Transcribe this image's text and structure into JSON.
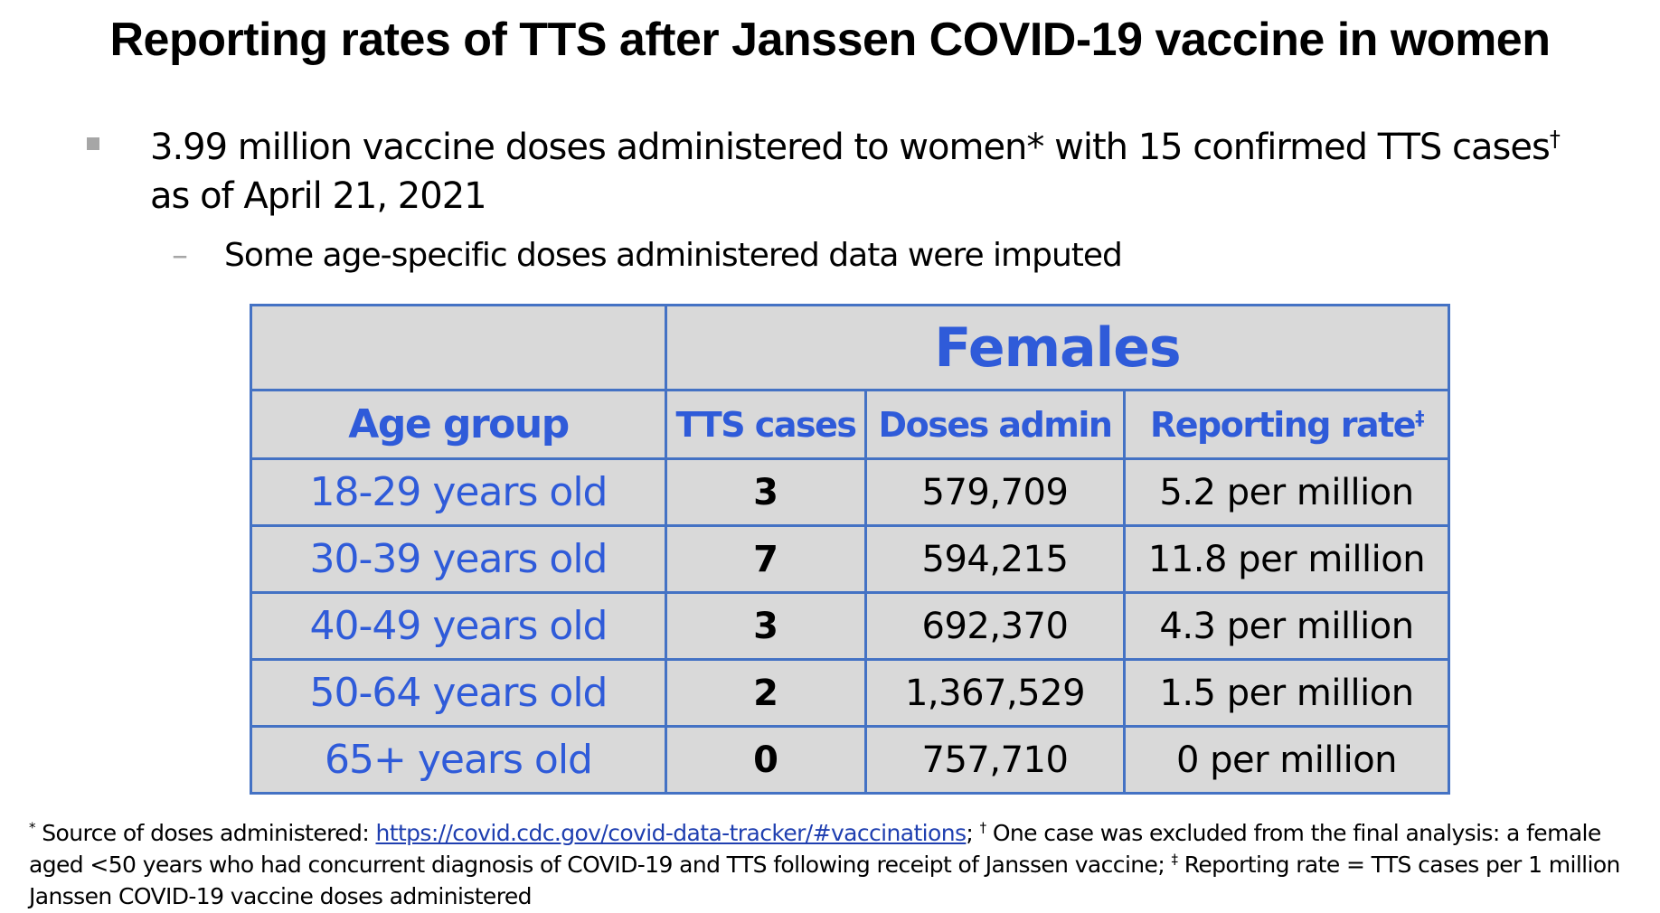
{
  "title": "Reporting rates of TTS after Janssen COVID-19 vaccine in women",
  "bullet_main": {
    "text": "3.99 million vaccine doses administered to women* with 15 confirmed TTS cases",
    "sup": "†",
    "text_cont": "as of April 21, 2021",
    "marker_color": "#a6a6a6"
  },
  "bullet_sub": {
    "marker": "–",
    "text": "Some age-specific doses administered data were imputed"
  },
  "table": {
    "group_header": "Females",
    "columns": {
      "age": "Age group",
      "tts": "TTS cases",
      "doses": "Doses admin",
      "rate": "Reporting rate",
      "rate_sup": "‡"
    },
    "rows": [
      {
        "age": "18-29 years old",
        "tts": "3",
        "doses": "579,709",
        "rate": "5.2 per million"
      },
      {
        "age": "30-39 years old",
        "tts": "7",
        "doses": "594,215",
        "rate": "11.8 per million"
      },
      {
        "age": "40-49 years old",
        "tts": "3",
        "doses": "692,370",
        "rate": "4.3 per million"
      },
      {
        "age": "50-64 years old",
        "tts": "2",
        "doses": "1,367,529",
        "rate": "1.5 per million"
      },
      {
        "age": "65+ years old",
        "tts": "0",
        "doses": "757,710",
        "rate": "0 per million"
      }
    ],
    "colors": {
      "border": "#4472c4",
      "header_text": "#2f5bd9",
      "background": "#d9d9d9"
    }
  },
  "footnote": {
    "sup1": "*",
    "part1": " Source of doses administered: ",
    "link_text": "https://covid.cdc.gov/covid-data-tracker/#vaccinations",
    "part2": "; ",
    "sup2": "†",
    "part3": " One case was excluded from the final analysis: a female aged <50 years who had concurrent diagnosis of COVID-19 and TTS following receipt of Janssen vaccine; ",
    "sup3": "‡",
    "part4": " Reporting rate = TTS cases per 1 million Janssen COVID-19 vaccine doses administered"
  }
}
